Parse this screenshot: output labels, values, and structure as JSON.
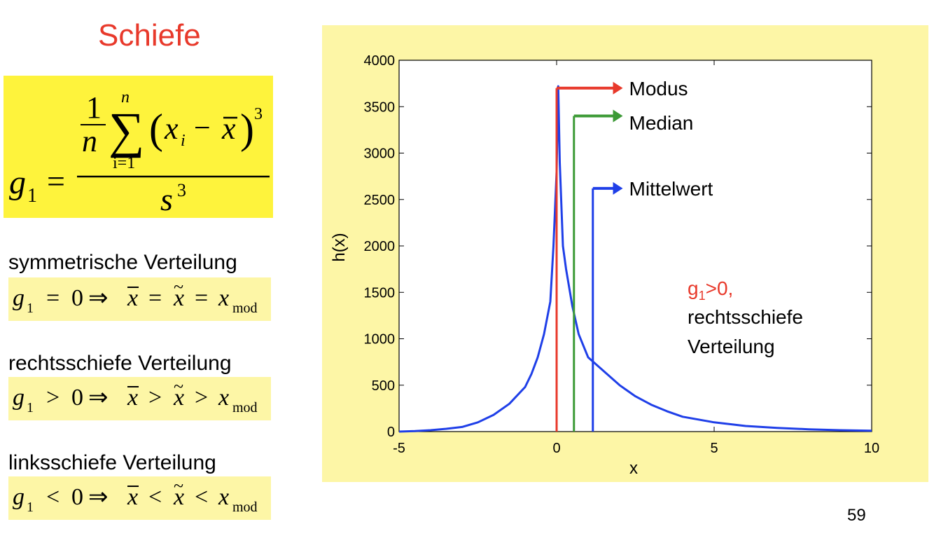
{
  "slide": {
    "title": "Schiefe",
    "page_number": "59"
  },
  "formula": {
    "lhs": "g",
    "lhs_sub": "1",
    "numerator_one": "1",
    "numerator_n": "n",
    "sum_symbol": "∑",
    "sum_upper": "n",
    "sum_lower": "i=1",
    "paren_open": "(",
    "x_var": "x",
    "x_sub": "i",
    "minus": "−",
    "x_bar": "x",
    "paren_close": ")",
    "power": "3",
    "denominator_s": "s",
    "denominator_power": "3",
    "equals": "="
  },
  "cases": [
    {
      "label": "symmetrische Verteilung",
      "relation": "=",
      "zero_rel": "=",
      "mod_sub": "mod"
    },
    {
      "label": "rechtsschiefe Verteilung",
      "relation": ">",
      "zero_rel": ">",
      "mod_sub": "mod"
    },
    {
      "label": "linksschiefe Verteilung",
      "relation": "<",
      "zero_rel": "<",
      "mod_sub": "mod"
    }
  ],
  "math_symbols": {
    "g": "g",
    "sub1": "1",
    "zero": "0",
    "implies": "⇒",
    "x": "x",
    "xbar": "x",
    "xtilde": "x",
    "bar": "¯",
    "tilde": "~"
  },
  "chart_data": {
    "type": "line",
    "title": "",
    "xlabel": "x",
    "ylabel": "h(x)",
    "xlim": [
      -5,
      10
    ],
    "ylim": [
      0,
      4000
    ],
    "x_ticks": [
      -5,
      0,
      5,
      10
    ],
    "y_ticks": [
      0,
      500,
      1000,
      1500,
      2000,
      2500,
      3000,
      3500,
      4000
    ],
    "grid": false,
    "series": [
      {
        "name": "h(x)",
        "color": "#1f3fe8",
        "x": [
          -5,
          -4.5,
          -4,
          -3.5,
          -3,
          -2.5,
          -2,
          -1.5,
          -1,
          -0.8,
          -0.6,
          -0.4,
          -0.2,
          -0.1,
          0,
          0.05,
          0.1,
          0.2,
          0.3,
          0.5,
          0.7,
          1,
          1.5,
          2,
          2.5,
          3,
          3.5,
          4,
          5,
          6,
          7,
          8,
          9,
          10
        ],
        "y": [
          0,
          5,
          15,
          30,
          50,
          100,
          180,
          300,
          480,
          620,
          800,
          1050,
          1400,
          2000,
          2800,
          3720,
          2900,
          2000,
          1750,
          1350,
          1050,
          800,
          650,
          500,
          380,
          290,
          220,
          160,
          100,
          60,
          40,
          25,
          15,
          10
        ]
      }
    ],
    "markers": [
      {
        "name": "Modus",
        "x": 0,
        "y_top": 3700,
        "color": "#e8392b",
        "label_y": 3700
      },
      {
        "name": "Median",
        "x": 0.55,
        "y_top": 3400,
        "color": "#3c9a36",
        "label_y": 3330
      },
      {
        "name": "Mittelwert",
        "x": 1.15,
        "y_top": 2620,
        "color": "#1f3fe8",
        "label_y": 2620
      }
    ],
    "marker_arrow_end_x": 2.1,
    "marker_label_x": 2.3,
    "annotation": {
      "g_text": "g",
      "g_sub": "1",
      "g_rest": ">0,",
      "line2": "rechtsschiefe",
      "line3": "Verteilung",
      "red": "#e8392b"
    }
  }
}
